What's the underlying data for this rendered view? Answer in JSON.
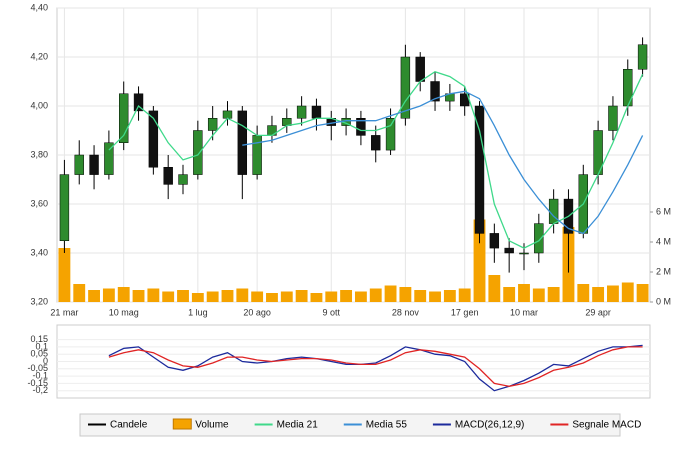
{
  "chart_data": [
    {
      "type": "candlestick",
      "categories": [
        "21 mar",
        null,
        null,
        null,
        "10 mag",
        null,
        null,
        null,
        null,
        "1 lug",
        null,
        null,
        null,
        "20 ago",
        null,
        null,
        null,
        null,
        "9 ott",
        null,
        null,
        null,
        null,
        "28 nov",
        null,
        null,
        null,
        "17 gen",
        null,
        null,
        null,
        "10 mar",
        null,
        null,
        null,
        null,
        "29 apr",
        null,
        null,
        null
      ],
      "ylim": [
        3.2,
        4.4
      ],
      "yticks": [
        {
          "value": 3.2,
          "label": "3,20"
        },
        {
          "value": 3.4,
          "label": "3,40"
        },
        {
          "value": 3.6,
          "label": "3,60"
        },
        {
          "value": 3.8,
          "label": "3,80"
        },
        {
          "value": 4.0,
          "label": "4,00"
        },
        {
          "value": 4.2,
          "label": "4,20"
        },
        {
          "value": 4.4,
          "label": "4,40"
        }
      ],
      "y2lim": [
        0,
        19.6
      ],
      "y2ticks": [
        {
          "value": 0,
          "label": "0 M"
        },
        {
          "value": 2,
          "label": "2 M"
        },
        {
          "value": 4,
          "label": "4 M"
        },
        {
          "value": 6,
          "label": "6 M"
        }
      ],
      "grid": true,
      "up_color": "#2e8b2e",
      "down_color": "#111111",
      "series": [
        {
          "name": "Candele",
          "color": "#000000",
          "open": [
            3.45,
            3.72,
            3.8,
            3.72,
            3.85,
            4.05,
            3.98,
            3.75,
            3.68,
            3.72,
            3.9,
            3.95,
            3.98,
            3.72,
            3.88,
            3.92,
            3.95,
            4.0,
            3.95,
            3.92,
            3.95,
            3.88,
            3.82,
            3.95,
            4.2,
            4.1,
            4.02,
            4.05,
            4.0,
            3.48,
            3.42,
            3.4,
            3.4,
            3.52,
            3.62,
            3.48,
            3.72,
            3.9,
            4.0,
            4.15
          ],
          "high": [
            3.78,
            3.86,
            3.84,
            3.9,
            4.1,
            4.08,
            4.0,
            3.8,
            3.76,
            3.94,
            4.0,
            4.02,
            4.0,
            3.92,
            3.96,
            3.99,
            4.04,
            4.03,
            3.98,
            3.99,
            3.98,
            3.92,
            3.99,
            4.25,
            4.22,
            4.14,
            4.09,
            4.08,
            4.02,
            3.52,
            3.46,
            3.44,
            3.56,
            3.66,
            3.66,
            3.76,
            3.94,
            4.04,
            4.19,
            4.28
          ],
          "low": [
            3.4,
            3.68,
            3.66,
            3.7,
            3.82,
            3.94,
            3.72,
            3.62,
            3.64,
            3.7,
            3.86,
            3.92,
            3.62,
            3.7,
            3.85,
            3.89,
            3.92,
            3.9,
            3.86,
            3.88,
            3.84,
            3.77,
            3.8,
            3.92,
            4.06,
            3.98,
            3.98,
            3.96,
            3.44,
            3.36,
            3.32,
            3.33,
            3.36,
            3.48,
            3.32,
            3.46,
            3.68,
            3.86,
            3.96,
            4.12
          ],
          "close": [
            3.72,
            3.8,
            3.72,
            3.85,
            4.05,
            3.98,
            3.75,
            3.68,
            3.72,
            3.9,
            3.95,
            3.98,
            3.72,
            3.88,
            3.92,
            3.95,
            4.0,
            3.95,
            3.92,
            3.95,
            3.88,
            3.82,
            3.95,
            4.2,
            4.1,
            4.02,
            4.05,
            4.0,
            3.48,
            3.42,
            3.4,
            3.4,
            3.52,
            3.62,
            3.48,
            3.72,
            3.9,
            4.0,
            4.15,
            4.25
          ]
        },
        {
          "name": "Volume",
          "color": "#f5a300",
          "axis": "y2",
          "values": [
            3.6,
            1.2,
            0.8,
            0.9,
            1.0,
            0.8,
            0.9,
            0.7,
            0.8,
            0.6,
            0.7,
            0.8,
            0.9,
            0.7,
            0.6,
            0.7,
            0.8,
            0.6,
            0.7,
            0.8,
            0.7,
            0.9,
            1.1,
            1.0,
            0.8,
            0.7,
            0.8,
            0.9,
            5.5,
            1.8,
            1.0,
            1.2,
            0.9,
            1.0,
            5.0,
            1.2,
            1.0,
            1.1,
            1.3,
            1.2
          ]
        },
        {
          "name": "Media 21",
          "color": "#3fd98a",
          "values": [
            null,
            null,
            null,
            3.82,
            3.88,
            4.0,
            3.95,
            3.85,
            3.78,
            3.8,
            3.88,
            3.95,
            3.92,
            3.88,
            3.88,
            3.92,
            3.93,
            3.95,
            3.95,
            3.93,
            3.9,
            3.9,
            3.92,
            4.02,
            4.1,
            4.14,
            4.12,
            4.08,
            3.9,
            3.6,
            3.45,
            3.42,
            3.45,
            3.52,
            3.55,
            3.6,
            3.72,
            3.85,
            4.0,
            4.13
          ]
        },
        {
          "name": "Media 55",
          "color": "#3b8fd6",
          "values": [
            null,
            null,
            null,
            null,
            null,
            null,
            null,
            null,
            null,
            null,
            null,
            null,
            3.84,
            3.85,
            3.86,
            3.88,
            3.9,
            3.92,
            3.93,
            3.94,
            3.94,
            3.94,
            3.96,
            3.98,
            4.0,
            4.03,
            4.05,
            4.06,
            4.03,
            3.92,
            3.8,
            3.7,
            3.62,
            3.55,
            3.5,
            3.48,
            3.55,
            3.65,
            3.76,
            3.88
          ]
        }
      ]
    },
    {
      "type": "line",
      "ylim": [
        -0.25,
        0.25
      ],
      "yticks": [
        {
          "value": 0.15,
          "label": "0,15"
        },
        {
          "value": 0.1,
          "label": "0,1"
        },
        {
          "value": 0.05,
          "label": "0,05"
        },
        0,
        {
          "value": -0.05,
          "label": "-0,05"
        },
        {
          "value": -0.1,
          "label": "-0,1"
        },
        {
          "value": -0.15,
          "label": "-0,15"
        },
        {
          "value": -0.2,
          "label": "-0,2"
        }
      ],
      "series": [
        {
          "name": "MACD(26,12,9)",
          "color": "#1c2a9c",
          "values": [
            null,
            null,
            null,
            0.04,
            0.09,
            0.1,
            0.03,
            -0.04,
            -0.06,
            -0.03,
            0.03,
            0.06,
            0.0,
            -0.01,
            0.0,
            0.02,
            0.03,
            0.02,
            0.0,
            -0.02,
            -0.02,
            -0.01,
            0.04,
            0.1,
            0.08,
            0.05,
            0.04,
            0.0,
            -0.12,
            -0.2,
            -0.17,
            -0.13,
            -0.08,
            -0.02,
            -0.03,
            0.02,
            0.07,
            0.1,
            0.1,
            0.11
          ]
        },
        {
          "name": "Segnale MACD",
          "color": "#e02424",
          "values": [
            null,
            null,
            null,
            0.03,
            0.06,
            0.08,
            0.06,
            0.01,
            -0.03,
            -0.04,
            -0.01,
            0.03,
            0.03,
            0.01,
            0.0,
            0.01,
            0.02,
            0.02,
            0.01,
            -0.01,
            -0.02,
            -0.02,
            0.01,
            0.06,
            0.08,
            0.07,
            0.05,
            0.03,
            -0.05,
            -0.15,
            -0.17,
            -0.15,
            -0.11,
            -0.06,
            -0.04,
            -0.01,
            0.04,
            0.08,
            0.1,
            0.1
          ]
        }
      ]
    }
  ]
}
